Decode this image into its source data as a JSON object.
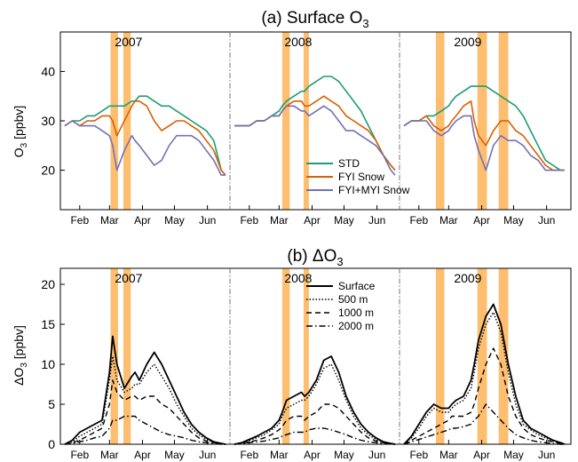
{
  "figure": {
    "panel_a_title": "(a) Surface O",
    "panel_a_title_sub": "3",
    "panel_b_title": "(b) ΔO",
    "panel_b_title_sub": "3",
    "panel_a_ylabel": "O",
    "panel_a_ylabel_sub": "3",
    "panel_a_ylabel_unit": " [ppbv]",
    "panel_b_ylabel": "ΔO",
    "panel_b_ylabel_sub": "3",
    "panel_b_ylabel_unit": " [ppbv]",
    "colors": {
      "STD": "#1b9e77",
      "FYI Snow": "#d95f02",
      "FYI+MYI Snow": "#7570b3",
      "shade": "#fdbf6f"
    }
  },
  "chart_data": [
    {
      "type": "line",
      "panel": "a",
      "years": [
        "2007",
        "2008",
        "2009"
      ],
      "month_ticks": [
        "Feb",
        "Mar",
        "Apr",
        "May",
        "Jun"
      ],
      "ylim": [
        12,
        48
      ],
      "yticks": [
        20,
        30,
        40
      ],
      "x_days": [
        0,
        7,
        14,
        21,
        28,
        35,
        42,
        45,
        49,
        56,
        63,
        66,
        70,
        77,
        84,
        91,
        98,
        105,
        112,
        119,
        126,
        133,
        140,
        147,
        151
      ],
      "shaded_periods": {
        "2007": [
          [
            43,
            50
          ],
          [
            55,
            62
          ]
        ],
        "2008": [
          [
            45,
            52
          ],
          [
            65,
            70
          ]
        ],
        "2009": [
          [
            30,
            38
          ],
          [
            69,
            78
          ],
          [
            89,
            98
          ]
        ]
      },
      "series": [
        {
          "name": "STD",
          "by_year": {
            "2007": [
              29,
              30,
              30,
              31,
              31,
              32,
              33,
              33,
              33,
              33,
              34,
              34,
              35,
              35,
              34,
              33,
              33,
              32,
              31,
              30,
              29,
              28,
              26,
              20,
              19
            ],
            "2008": [
              29,
              29,
              29,
              30,
              30,
              31,
              32,
              33,
              34,
              35,
              36,
              36,
              37,
              38,
              39,
              39,
              38,
              36,
              34,
              32,
              29,
              26,
              23,
              21,
              20
            ],
            "2009": [
              29,
              30,
              30,
              31,
              31,
              32,
              33,
              34,
              35,
              36,
              37,
              37,
              37,
              37,
              36,
              35,
              34,
              33,
              31,
              28,
              25,
              22,
              21,
              20,
              20
            ]
          }
        },
        {
          "name": "FYI Snow",
          "by_year": {
            "2007": [
              29,
              30,
              29,
              30,
              30,
              31,
              31,
              30,
              27,
              30,
              33,
              34,
              34,
              33,
              30,
              28,
              29,
              30,
              30,
              29,
              28,
              26,
              24,
              20,
              19
            ],
            "2008": [
              29,
              29,
              29,
              30,
              30,
              31,
              31,
              32,
              33,
              34,
              34,
              33,
              33,
              34,
              35,
              34,
              33,
              31,
              30,
              29,
              28,
              26,
              23,
              21,
              20
            ],
            "2009": [
              29,
              30,
              30,
              31,
              29,
              28,
              29,
              30,
              31,
              33,
              34,
              30,
              27,
              25,
              28,
              30,
              30,
              28,
              27,
              25,
              23,
              21,
              20,
              20,
              20
            ]
          }
        },
        {
          "name": "FYI+MYI Snow",
          "by_year": {
            "2007": [
              29,
              30,
              29,
              29,
              29,
              28,
              27,
              25,
              20,
              24,
              27,
              26,
              25,
              23,
              21,
              22,
              25,
              27,
              27,
              27,
              26,
              24,
              22,
              19,
              19
            ],
            "2008": [
              29,
              29,
              29,
              30,
              30,
              31,
              31,
              32,
              33,
              33,
              32,
              32,
              31,
              32,
              33,
              32,
              30,
              28,
              28,
              27,
              26,
              25,
              23,
              20,
              19
            ],
            "2009": [
              29,
              30,
              30,
              30,
              28,
              27,
              28,
              29,
              30,
              31,
              31,
              27,
              24,
              20,
              25,
              27,
              26,
              26,
              25,
              23,
              22,
              20,
              20,
              20,
              20
            ]
          }
        }
      ],
      "legend": [
        "STD",
        "FYI Snow",
        "FYI+MYI Snow"
      ]
    },
    {
      "type": "line",
      "panel": "b",
      "years": [
        "2007",
        "2008",
        "2009"
      ],
      "month_ticks": [
        "Feb",
        "Mar",
        "Apr",
        "May",
        "Jun"
      ],
      "ylim": [
        0,
        22
      ],
      "yticks": [
        0,
        5,
        10,
        15,
        20
      ],
      "x_days": [
        0,
        7,
        14,
        21,
        28,
        35,
        42,
        45,
        49,
        56,
        63,
        66,
        70,
        77,
        84,
        91,
        98,
        105,
        112,
        119,
        126,
        133,
        140,
        147,
        151
      ],
      "series": [
        {
          "name": "Surface",
          "by_year": {
            "2007": [
              0,
              0.5,
              1.5,
              2,
              2.5,
              3,
              9,
              13.5,
              10,
              7,
              8.5,
              9,
              8,
              10,
              11.5,
              10,
              8,
              6,
              4,
              2.5,
              1.5,
              0.8,
              0.3,
              0.1,
              0
            ],
            "2008": [
              0,
              0.2,
              0.6,
              1,
              1.5,
              2,
              3,
              4,
              5.5,
              6,
              6.5,
              6,
              6.5,
              8,
              10.5,
              11,
              9,
              6,
              4,
              2.5,
              1.5,
              0.8,
              0.3,
              0.1,
              0
            ],
            "2009": [
              0,
              1,
              2.5,
              4,
              5,
              4.5,
              4.5,
              5,
              5.5,
              6,
              8,
              10,
              13,
              16,
              17.5,
              15,
              10,
              6,
              3,
              2,
              1.5,
              1,
              0.5,
              0.2,
              0
            ]
          }
        },
        {
          "name": "500 m",
          "by_year": {
            "2007": [
              0,
              0.3,
              1,
              1.5,
              2,
              2.5,
              8,
              11,
              8,
              6.5,
              7,
              7.5,
              7.5,
              9,
              10,
              8.5,
              7,
              5,
              3.5,
              2,
              1.2,
              0.6,
              0.2,
              0.1,
              0
            ],
            "2008": [
              0,
              0.2,
              0.5,
              0.8,
              1.2,
              1.8,
              2.5,
              3.5,
              4.5,
              5,
              5.5,
              5.5,
              6,
              7.5,
              9.5,
              10,
              8,
              5.5,
              3.5,
              2,
              1.2,
              0.6,
              0.2,
              0.1,
              0
            ],
            "2009": [
              0,
              0.8,
              2,
              3.5,
              4.5,
              4,
              4,
              4.5,
              5,
              5.5,
              7,
              9,
              12,
              15,
              16.5,
              14,
              9,
              5,
              2.5,
              1.8,
              1.2,
              0.8,
              0.4,
              0.2,
              0
            ]
          }
        },
        {
          "name": "1000 m",
          "by_year": {
            "2007": [
              0,
              0.2,
              0.5,
              1,
              1.5,
              2,
              5,
              8,
              6.5,
              5.5,
              6,
              6,
              5.5,
              6,
              6,
              5,
              4.5,
              3.5,
              2.5,
              1.5,
              0.8,
              0.4,
              0.2,
              0.1,
              0
            ],
            "2008": [
              0,
              0.1,
              0.3,
              0.5,
              0.8,
              1.2,
              1.8,
              2.2,
              3,
              3.5,
              3.5,
              3,
              3.5,
              4,
              5,
              5,
              4.5,
              3.5,
              2.5,
              1.5,
              0.8,
              0.4,
              0.2,
              0.1,
              0
            ],
            "2009": [
              0,
              0.5,
              1,
              1.5,
              2,
              2.5,
              3,
              3.5,
              3.5,
              3.5,
              4,
              5,
              7,
              10,
              12,
              10,
              6,
              3.5,
              2,
              1.2,
              0.8,
              0.5,
              0.3,
              0.1,
              0
            ]
          }
        },
        {
          "name": "2000 m",
          "by_year": {
            "2007": [
              0,
              0.1,
              0.3,
              0.5,
              0.8,
              1,
              2,
              3,
              3,
              3.5,
              3.5,
              3.5,
              3,
              2.5,
              2,
              1.5,
              1.2,
              1,
              0.8,
              0.5,
              0.3,
              0.2,
              0.1,
              0,
              0
            ],
            "2008": [
              0,
              0.1,
              0.2,
              0.3,
              0.4,
              0.6,
              0.8,
              1,
              1.2,
              1.5,
              1.5,
              1.5,
              1.8,
              2,
              2,
              1.8,
              1.5,
              1.2,
              0.8,
              0.5,
              0.3,
              0.2,
              0.1,
              0,
              0
            ],
            "2009": [
              0,
              0.3,
              0.6,
              0.9,
              1.2,
              1.5,
              1.8,
              2,
              2,
              2.2,
              2.5,
              3,
              3.5,
              5,
              4,
              3,
              2,
              1.2,
              0.8,
              0.5,
              0.3,
              0.2,
              0.1,
              0,
              0
            ]
          }
        }
      ],
      "legend": [
        "Surface",
        "500 m",
        "1000 m",
        "2000 m"
      ]
    }
  ]
}
